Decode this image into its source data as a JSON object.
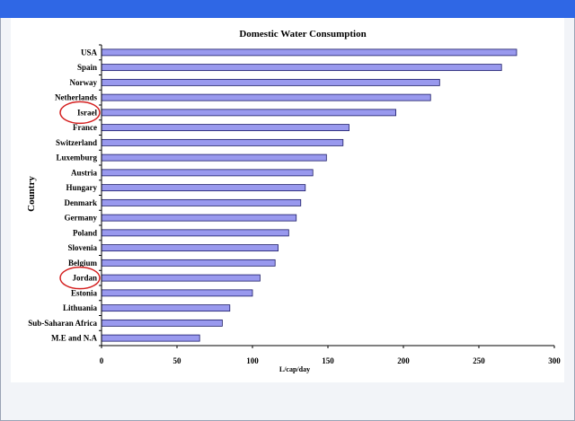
{
  "colors": {
    "topbar": "#2f67e5",
    "bar_fill": "#9999ee",
    "bar_stroke": "#1a1a66",
    "highlight_circle": "#d42020"
  },
  "chart_data": {
    "type": "bar",
    "orientation": "horizontal",
    "title": "Domestic Water Consumption",
    "xlabel": "L/cap/day",
    "ylabel": "Country",
    "xlim": [
      0,
      300
    ],
    "x_ticks": [
      "0",
      "50",
      "100",
      "150",
      "200",
      "250",
      "300"
    ],
    "grid": false,
    "legend": "none",
    "categories": [
      "USA",
      "Spain",
      "Norway",
      "Netherlands",
      "Israel",
      "France",
      "Switzerland",
      "Luxemburg",
      "Austria",
      "Hungary",
      "Denmark",
      "Germany",
      "Poland",
      "Slovenia",
      "Belgium",
      "Jordan",
      "Estonia",
      "Lithuania",
      "Sub-Saharan Africa",
      "M.E and N.A"
    ],
    "values": [
      275,
      265,
      224,
      218,
      195,
      164,
      160,
      149,
      140,
      135,
      132,
      129,
      124,
      117,
      115,
      105,
      100,
      85,
      80,
      65
    ],
    "highlighted": [
      "Israel",
      "Jordan"
    ]
  }
}
